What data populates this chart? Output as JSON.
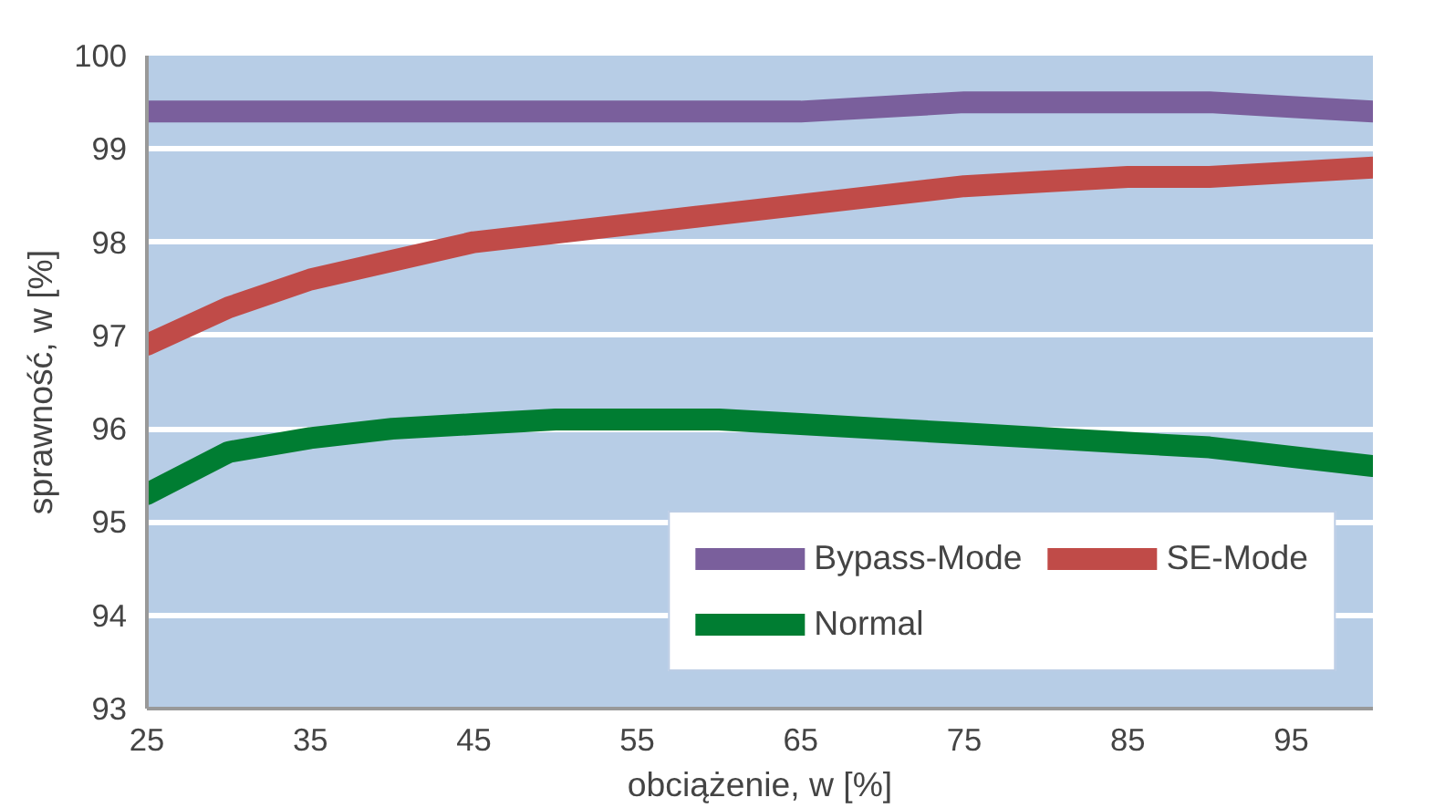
{
  "chart_data": {
    "type": "line",
    "xlabel": "obciążenie, w [%]",
    "ylabel": "sprawność, w [%]",
    "x": [
      25,
      30,
      35,
      40,
      45,
      50,
      55,
      60,
      65,
      70,
      75,
      80,
      85,
      90,
      95,
      100
    ],
    "series": [
      {
        "name": "Bypass-Mode",
        "color": "#7a5f9c",
        "values": [
          99.4,
          99.4,
          99.4,
          99.4,
          99.4,
          99.4,
          99.4,
          99.4,
          99.4,
          99.45,
          99.5,
          99.5,
          99.5,
          99.5,
          99.45,
          99.4
        ]
      },
      {
        "name": "SE-Mode",
        "color": "#c04b48",
        "values": [
          96.9,
          97.3,
          97.6,
          97.8,
          98.0,
          98.1,
          98.2,
          98.3,
          98.4,
          98.5,
          98.6,
          98.65,
          98.7,
          98.7,
          98.75,
          98.8
        ]
      },
      {
        "name": "Normal",
        "color": "#007d32",
        "values": [
          95.3,
          95.75,
          95.9,
          96.0,
          96.05,
          96.1,
          96.1,
          96.1,
          96.05,
          96.0,
          95.95,
          95.9,
          95.85,
          95.8,
          95.7,
          95.6
        ]
      }
    ],
    "xlim": [
      25,
      100
    ],
    "xticks": [
      25,
      35,
      45,
      55,
      65,
      75,
      85,
      95
    ],
    "ylim": [
      93,
      100
    ],
    "yticks": [
      93,
      94,
      95,
      96,
      97,
      98,
      99,
      100
    ],
    "grid": "y",
    "legend": "bottom right",
    "line_style": "solid"
  }
}
